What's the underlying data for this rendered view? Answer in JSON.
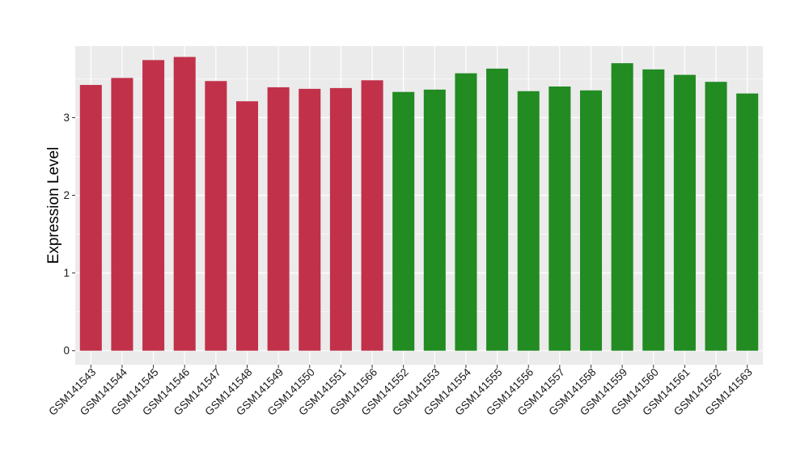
{
  "chart_data": {
    "type": "bar",
    "title": "",
    "xlabel": "",
    "ylabel": "Expression Level",
    "ylim": [
      -0.18,
      3.92
    ],
    "yticks": [
      0,
      1,
      2,
      3
    ],
    "grid": true,
    "legend": "none",
    "panel_background": "#ebebeb",
    "gridline_color": "#ffffff",
    "categories": [
      "GSM141543",
      "GSM141544",
      "GSM141545",
      "GSM141546",
      "GSM141547",
      "GSM141548",
      "GSM141549",
      "GSM141550",
      "GSM141551",
      "GSM141566",
      "GSM141552",
      "GSM141553",
      "GSM141554",
      "GSM141555",
      "GSM141556",
      "GSM141557",
      "GSM141558",
      "GSM141559",
      "GSM141560",
      "GSM141561",
      "GSM141562",
      "GSM141563"
    ],
    "values": [
      3.42,
      3.51,
      3.74,
      3.78,
      3.47,
      3.21,
      3.39,
      3.37,
      3.38,
      3.48,
      3.33,
      3.36,
      3.57,
      3.63,
      3.34,
      3.4,
      3.35,
      3.7,
      3.62,
      3.55,
      3.46,
      3.31
    ],
    "colors": [
      "#c1314a",
      "#c1314a",
      "#c1314a",
      "#c1314a",
      "#c1314a",
      "#c1314a",
      "#c1314a",
      "#c1314a",
      "#c1314a",
      "#c1314a",
      "#228b22",
      "#228b22",
      "#228b22",
      "#228b22",
      "#228b22",
      "#228b22",
      "#228b22",
      "#228b22",
      "#228b22",
      "#228b22",
      "#228b22",
      "#228b22"
    ]
  }
}
